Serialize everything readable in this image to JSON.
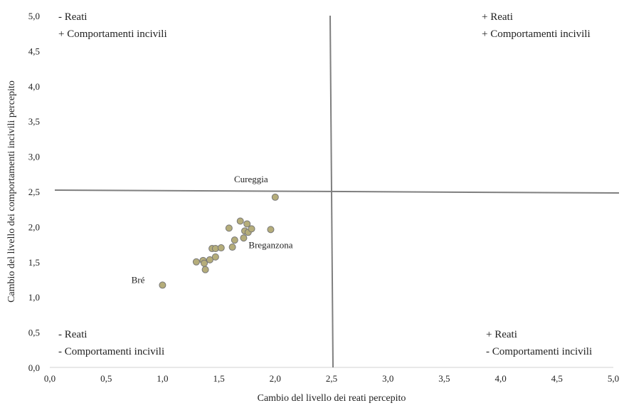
{
  "chart_data": {
    "type": "scatter",
    "xlabel": "Cambio del livello dei reati percepito",
    "ylabel": "Cambio del livello dei comportamenti incivili percepito",
    "xlim": [
      0,
      5
    ],
    "ylim": [
      0,
      5
    ],
    "x_ticks": [
      "0,0",
      "0,5",
      "1,0",
      "1,5",
      "2,0",
      "2,5",
      "3,0",
      "3,5",
      "4,0",
      "4,5",
      "5,0"
    ],
    "y_ticks": [
      "0,0",
      "0,5",
      "1,0",
      "1,5",
      "2,0",
      "2,5",
      "3,0",
      "3,5",
      "4,0",
      "4,5",
      "5,0"
    ],
    "grid": false,
    "marker_color": "#b5ad7a",
    "marker_edge_color": "#777777",
    "divider_color": "#7f7f7f",
    "dividers": {
      "x": 2.5,
      "y": 2.5
    },
    "quadrant_labels": [
      {
        "position": "top-left",
        "lines": [
          "- Reati",
          "+ Comportamenti incivili"
        ]
      },
      {
        "position": "top-right",
        "lines": [
          "+ Reati",
          "+ Comportamenti incivili"
        ]
      },
      {
        "position": "bottom-left",
        "lines": [
          "- Reati",
          "- Comportamenti incivili"
        ]
      },
      {
        "position": "bottom-right",
        "lines": [
          "+ Reati",
          "- Comportamenti incivili"
        ]
      }
    ],
    "series": [
      {
        "points": [
          {
            "x": 1.0,
            "y": 1.17,
            "label": "Bré"
          },
          {
            "x": 1.3,
            "y": 1.5
          },
          {
            "x": 1.36,
            "y": 1.52
          },
          {
            "x": 1.37,
            "y": 1.48
          },
          {
            "x": 1.38,
            "y": 1.39
          },
          {
            "x": 1.42,
            "y": 1.53
          },
          {
            "x": 1.44,
            "y": 1.69
          },
          {
            "x": 1.47,
            "y": 1.57
          },
          {
            "x": 1.47,
            "y": 1.69
          },
          {
            "x": 1.52,
            "y": 1.7
          },
          {
            "x": 1.59,
            "y": 1.98
          },
          {
            "x": 1.62,
            "y": 1.71
          },
          {
            "x": 1.64,
            "y": 1.81
          },
          {
            "x": 1.69,
            "y": 2.08
          },
          {
            "x": 1.72,
            "y": 1.84
          },
          {
            "x": 1.73,
            "y": 1.94
          },
          {
            "x": 1.75,
            "y": 2.04
          },
          {
            "x": 1.76,
            "y": 1.92
          },
          {
            "x": 1.79,
            "y": 1.97
          },
          {
            "x": 1.96,
            "y": 1.96,
            "label": "Breganzona"
          },
          {
            "x": 2.0,
            "y": 2.42,
            "label": "Cureggia"
          }
        ]
      }
    ]
  }
}
